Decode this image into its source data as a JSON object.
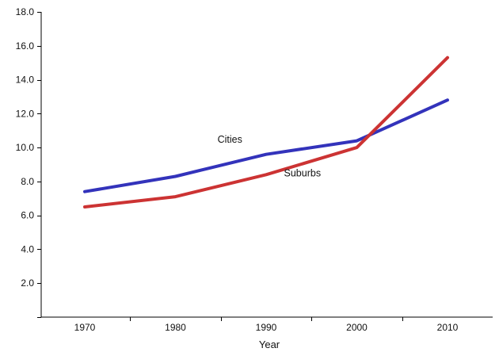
{
  "chart_data": {
    "type": "line",
    "title": "",
    "xlabel": "Year",
    "ylabel": "",
    "x": [
      1970,
      1980,
      1990,
      2000,
      2010
    ],
    "x_tick_labels": [
      "1970",
      "1980",
      "1990",
      "2000",
      "2010"
    ],
    "ylim": [
      0,
      18
    ],
    "y_ticks": [
      0,
      2,
      4,
      6,
      8,
      10,
      12,
      14,
      16,
      18
    ],
    "y_tick_labels": [
      "2.0",
      "4.0",
      "6.0",
      "8.0",
      "10.0",
      "12.0",
      "14.0",
      "16.0",
      "18.0"
    ],
    "grid": false,
    "legend": "none",
    "series": [
      {
        "name": "Cities",
        "color": "#3333bb",
        "values": [
          7.4,
          8.3,
          9.6,
          10.4,
          12.8
        ]
      },
      {
        "name": "Suburbs",
        "color": "#cc3333",
        "values": [
          6.5,
          7.1,
          8.4,
          10.0,
          15.3
        ]
      }
    ]
  }
}
